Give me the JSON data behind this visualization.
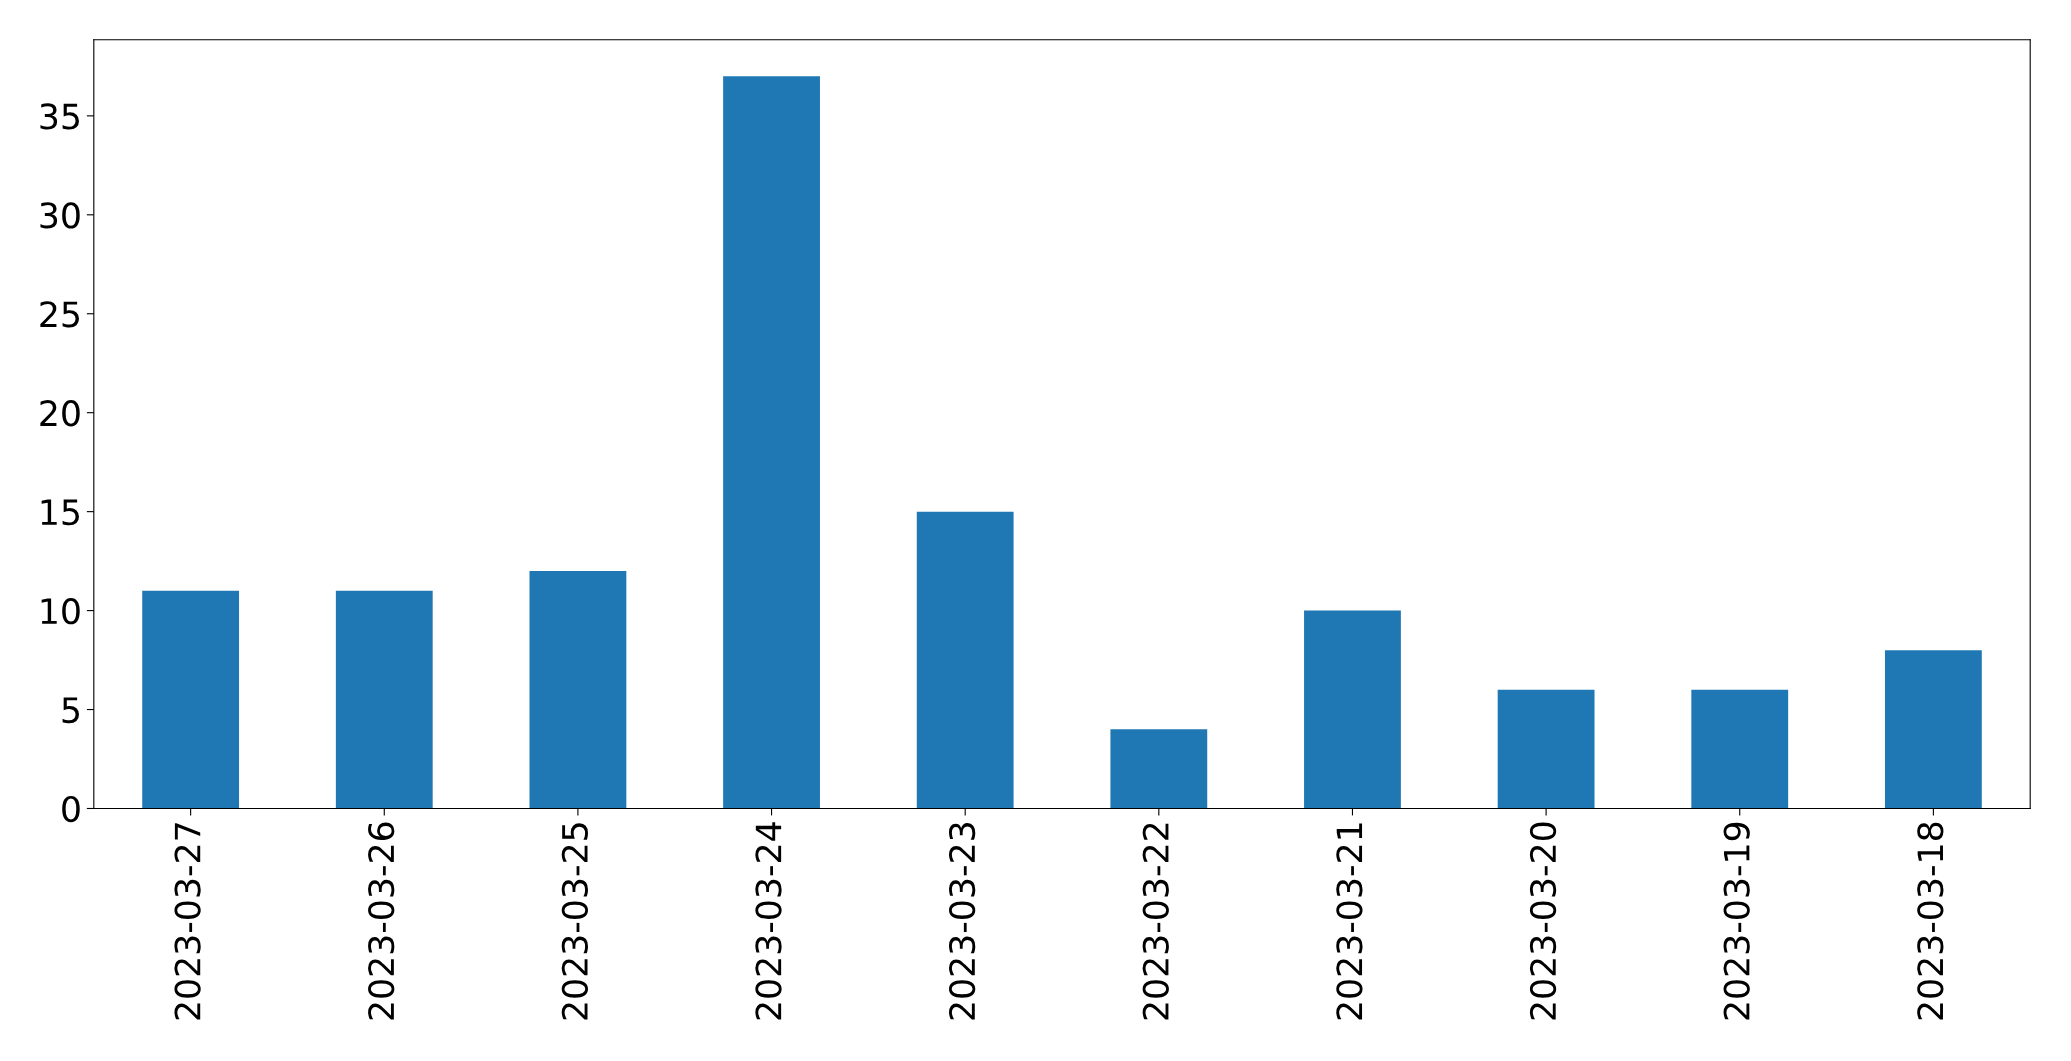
{
  "chart_data": {
    "type": "bar",
    "categories": [
      "2023-03-27",
      "2023-03-26",
      "2023-03-25",
      "2023-03-24",
      "2023-03-23",
      "2023-03-22",
      "2023-03-21",
      "2023-03-20",
      "2023-03-19",
      "2023-03-18"
    ],
    "values": [
      11,
      11,
      12,
      37,
      15,
      4,
      10,
      6,
      6,
      8
    ],
    "color": "#1f77b4",
    "ylim": [
      0,
      38.85
    ],
    "yticks": [
      0,
      5,
      10,
      15,
      20,
      25,
      30,
      35
    ],
    "grid": false
  }
}
